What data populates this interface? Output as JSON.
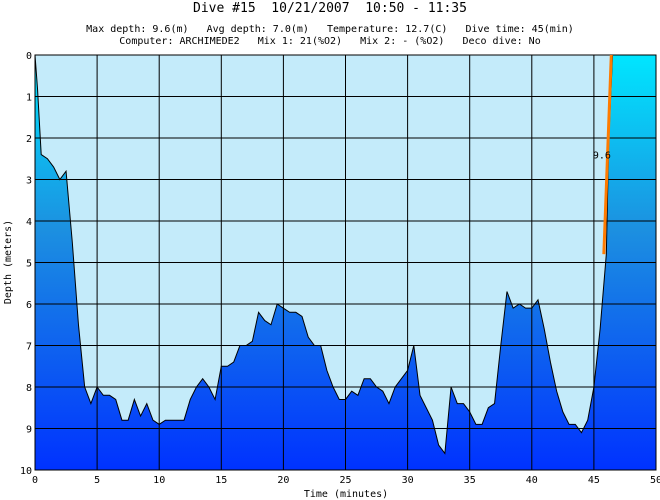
{
  "header": {
    "title": "Dive #15  10/21/2007  10:50 - 11:35",
    "info_line1": "Max depth: 9.6(m)   Avg depth: 7.0(m)   Temperature: 12.7(C)   Dive time: 45(min)",
    "info_line2": "Computer: ARCHIMEDE2   Mix 1: 21(%O2)   Mix 2: - (%O2)   Deco dive: No"
  },
  "chart_data": {
    "type": "area",
    "title": "Dive #15  10/21/2007  10:50 - 11:35",
    "xlabel": "Time (minutes)",
    "ylabel": "Depth (meters)",
    "xlim": [
      0,
      50
    ],
    "ylim": [
      0,
      10
    ],
    "y_inverted": true,
    "grid": true,
    "x_ticks": [
      "0",
      "5",
      "10",
      "15",
      "20",
      "25",
      "30",
      "35",
      "40",
      "45",
      "50"
    ],
    "y_ticks": [
      "0",
      "1",
      "2",
      "3",
      "4",
      "5",
      "6",
      "7",
      "8",
      "9",
      "10"
    ],
    "series": [
      {
        "points": [
          [
            0,
            0
          ],
          [
            0.2,
            0.8
          ],
          [
            0.5,
            2.4
          ],
          [
            1,
            2.5
          ],
          [
            1.5,
            2.7
          ],
          [
            2,
            3.0
          ],
          [
            2.5,
            2.8
          ],
          [
            3,
            4.5
          ],
          [
            3.5,
            6.5
          ],
          [
            4,
            8.0
          ],
          [
            4.5,
            8.4
          ],
          [
            5,
            8.0
          ],
          [
            5.5,
            8.2
          ],
          [
            6,
            8.2
          ],
          [
            6.5,
            8.3
          ],
          [
            7,
            8.8
          ],
          [
            7.5,
            8.8
          ],
          [
            8,
            8.3
          ],
          [
            8.5,
            8.7
          ],
          [
            9,
            8.4
          ],
          [
            9.5,
            8.8
          ],
          [
            10,
            8.9
          ],
          [
            10.5,
            8.8
          ],
          [
            11,
            8.8
          ],
          [
            12,
            8.8
          ],
          [
            12.5,
            8.3
          ],
          [
            13,
            8.0
          ],
          [
            13.5,
            7.8
          ],
          [
            14,
            8.0
          ],
          [
            14.5,
            8.3
          ],
          [
            15,
            7.5
          ],
          [
            15.5,
            7.5
          ],
          [
            16,
            7.4
          ],
          [
            16.5,
            7.0
          ],
          [
            17,
            7.0
          ],
          [
            17.5,
            6.9
          ],
          [
            18,
            6.2
          ],
          [
            18.5,
            6.4
          ],
          [
            19,
            6.5
          ],
          [
            19.5,
            6.0
          ],
          [
            20,
            6.1
          ],
          [
            20.5,
            6.2
          ],
          [
            21,
            6.2
          ],
          [
            21.5,
            6.3
          ],
          [
            22,
            6.8
          ],
          [
            22.5,
            7.0
          ],
          [
            23,
            7.0
          ],
          [
            23.5,
            7.6
          ],
          [
            24,
            8.0
          ],
          [
            24.5,
            8.3
          ],
          [
            25,
            8.3
          ],
          [
            25.5,
            8.1
          ],
          [
            26,
            8.2
          ],
          [
            26.5,
            7.8
          ],
          [
            27,
            7.8
          ],
          [
            27.5,
            8.0
          ],
          [
            28,
            8.1
          ],
          [
            28.5,
            8.4
          ],
          [
            29,
            8.0
          ],
          [
            29.5,
            7.8
          ],
          [
            30,
            7.6
          ],
          [
            30.5,
            7.0
          ],
          [
            31,
            8.2
          ],
          [
            31.5,
            8.5
          ],
          [
            32,
            8.8
          ],
          [
            32.5,
            9.4
          ],
          [
            33,
            9.6
          ],
          [
            33.5,
            8.0
          ],
          [
            34,
            8.4
          ],
          [
            34.5,
            8.4
          ],
          [
            35,
            8.6
          ],
          [
            35.5,
            8.9
          ],
          [
            36,
            8.9
          ],
          [
            36.5,
            8.5
          ],
          [
            37,
            8.4
          ],
          [
            37.5,
            7.0
          ],
          [
            38,
            5.7
          ],
          [
            38.5,
            6.1
          ],
          [
            39,
            6.0
          ],
          [
            39.5,
            6.1
          ],
          [
            40,
            6.1
          ],
          [
            40.5,
            5.9
          ],
          [
            41,
            6.6
          ],
          [
            41.5,
            7.4
          ],
          [
            42,
            8.1
          ],
          [
            42.5,
            8.6
          ],
          [
            43,
            8.9
          ],
          [
            43.5,
            8.9
          ],
          [
            44,
            9.1
          ],
          [
            44.5,
            8.8
          ],
          [
            45,
            8.0
          ],
          [
            45.5,
            6.6
          ],
          [
            46,
            4.8
          ],
          [
            46.2,
            2.0
          ],
          [
            46.5,
            0
          ]
        ]
      }
    ],
    "annotations": [
      {
        "text": "9.6",
        "x": 45,
        "y": 2.4
      }
    ],
    "ascent_marker": {
      "x_start": 45.8,
      "y_start": 4.8,
      "x_end": 46.4,
      "y_end": 0
    },
    "colors": {
      "surface_fill": "#c4ebfa",
      "depth_gradient_top": "#00e6ff",
      "depth_gradient_mid": "#1c90e0",
      "depth_gradient_bottom": "#0032ff",
      "ascent_line": "#ff7b00",
      "grid": "#000000"
    }
  }
}
